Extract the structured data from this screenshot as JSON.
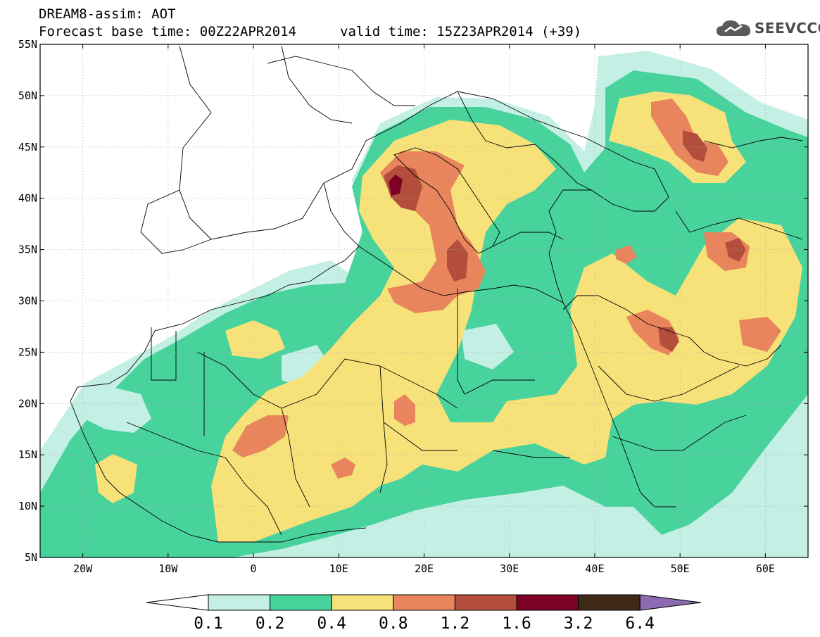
{
  "title": {
    "line1": "DREAM8-assim: AOT",
    "line2": "Forecast base time: 00Z22APR2014",
    "valid": "valid time: 15Z23APR2014 (+39)"
  },
  "logo": {
    "text": "SEEVCCC",
    "icon": "cloud-icon"
  },
  "map": {
    "lon_range": [
      -25,
      65
    ],
    "lat_range": [
      5,
      55
    ],
    "lat_labels": [
      {
        "lat": 55,
        "text": "55N"
      },
      {
        "lat": 50,
        "text": "50N"
      },
      {
        "lat": 45,
        "text": "45N"
      },
      {
        "lat": 40,
        "text": "40N"
      },
      {
        "lat": 35,
        "text": "35N"
      },
      {
        "lat": 30,
        "text": "30N"
      },
      {
        "lat": 25,
        "text": "25N"
      },
      {
        "lat": 20,
        "text": "20N"
      },
      {
        "lat": 15,
        "text": "15N"
      },
      {
        "lat": 10,
        "text": "10N"
      },
      {
        "lat": 5,
        "text": "5N"
      }
    ],
    "lon_labels": [
      {
        "lon": -20,
        "text": "20W"
      },
      {
        "lon": -10,
        "text": "10W"
      },
      {
        "lon": 0,
        "text": "0"
      },
      {
        "lon": 10,
        "text": "10E"
      },
      {
        "lon": 20,
        "text": "20E"
      },
      {
        "lon": 30,
        "text": "30E"
      },
      {
        "lon": 40,
        "text": "40E"
      },
      {
        "lon": 50,
        "text": "50E"
      },
      {
        "lon": 60,
        "text": "60E"
      }
    ],
    "grid": "dotted"
  },
  "colorbar": {
    "under_color": "#ffffff",
    "over_color": "#8c6bb1",
    "bins": [
      {
        "color": "#c4efe4"
      },
      {
        "color": "#48d29c"
      },
      {
        "color": "#f7e27a"
      },
      {
        "color": "#e8855c"
      },
      {
        "color": "#b34e3c"
      },
      {
        "color": "#7d0025"
      },
      {
        "color": "#3f2a17"
      }
    ],
    "labels": [
      "0.1",
      "0.2",
      "0.4",
      "0.8",
      "1.2",
      "1.6",
      "3.2",
      "6.4"
    ]
  }
}
